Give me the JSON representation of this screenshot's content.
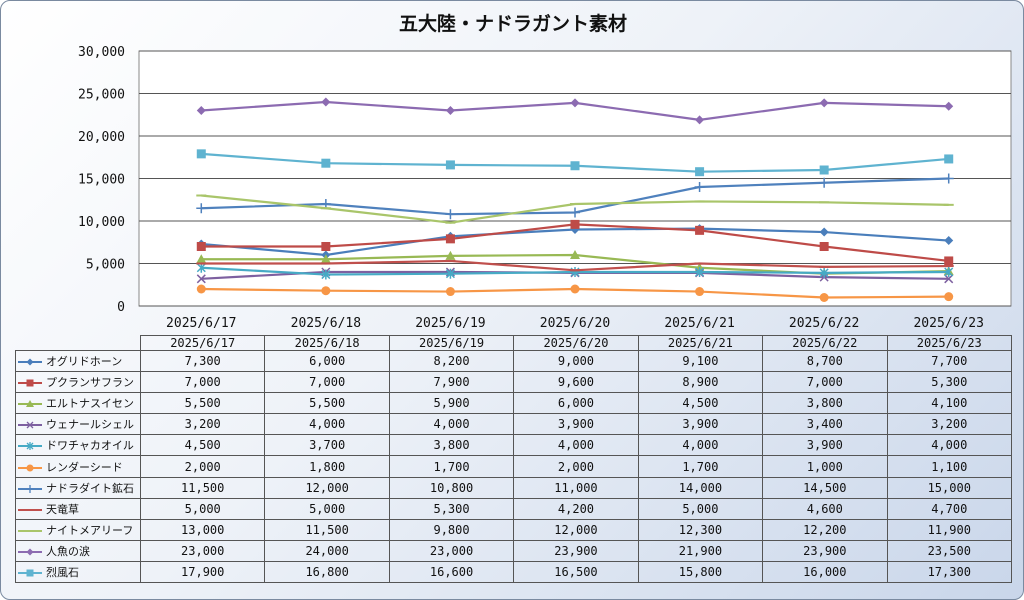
{
  "chart_data": {
    "type": "line",
    "title": "五大陸・ナドラガント素材",
    "categories": [
      "2025/6/17",
      "2025/6/18",
      "2025/6/19",
      "2025/6/20",
      "2025/6/21",
      "2025/6/22",
      "2025/6/23"
    ],
    "ylim": [
      0,
      30000
    ],
    "yticks": [
      "0",
      "5,000",
      "10,000",
      "15,000",
      "20,000",
      "25,000",
      "30,000"
    ],
    "grid": true,
    "legend": "data-table",
    "series": [
      {
        "name": "オグリドホーン",
        "color": "#4a7ebb",
        "marker": "diamond",
        "values": [
          7300,
          6000,
          8200,
          9000,
          9100,
          8700,
          7700
        ],
        "labels": [
          "7,300",
          "6,000",
          "8,200",
          "9,000",
          "9,100",
          "8,700",
          "7,700"
        ]
      },
      {
        "name": "プクランサフラン",
        "color": "#be4b48",
        "marker": "square",
        "values": [
          7000,
          7000,
          7900,
          9600,
          8900,
          7000,
          5300
        ],
        "labels": [
          "7,000",
          "7,000",
          "7,900",
          "9,600",
          "8,900",
          "7,000",
          "5,300"
        ]
      },
      {
        "name": "エルトナスイセン",
        "color": "#98b954",
        "marker": "triangle",
        "values": [
          5500,
          5500,
          5900,
          6000,
          4500,
          3800,
          4100
        ],
        "labels": [
          "5,500",
          "5,500",
          "5,900",
          "6,000",
          "4,500",
          "3,800",
          "4,100"
        ]
      },
      {
        "name": "ウェナールシェル",
        "color": "#7d60a0",
        "marker": "x",
        "values": [
          3200,
          4000,
          4000,
          3900,
          3900,
          3400,
          3200
        ],
        "labels": [
          "3,200",
          "4,000",
          "4,000",
          "3,900",
          "3,900",
          "3,400",
          "3,200"
        ]
      },
      {
        "name": "ドワチャカオイル",
        "color": "#46aac5",
        "marker": "star",
        "values": [
          4500,
          3700,
          3800,
          4000,
          4000,
          3900,
          4000
        ],
        "labels": [
          "4,500",
          "3,700",
          "3,800",
          "4,000",
          "4,000",
          "3,900",
          "4,000"
        ]
      },
      {
        "name": "レンダーシード",
        "color": "#f79646",
        "marker": "circle",
        "values": [
          2000,
          1800,
          1700,
          2000,
          1700,
          1000,
          1100
        ],
        "labels": [
          "2,000",
          "1,800",
          "1,700",
          "2,000",
          "1,700",
          "1,000",
          "1,100"
        ]
      },
      {
        "name": "ナドラダイト鉱石",
        "color": "#4f81bd",
        "marker": "plus",
        "values": [
          11500,
          12000,
          10800,
          11000,
          14000,
          14500,
          15000
        ],
        "labels": [
          "11,500",
          "12,000",
          "10,800",
          "11,000",
          "14,000",
          "14,500",
          "15,000"
        ]
      },
      {
        "name": "天竜草",
        "color": "#c0504d",
        "marker": "dash",
        "values": [
          5000,
          5000,
          5300,
          4200,
          5000,
          4600,
          4700
        ],
        "labels": [
          "5,000",
          "5,000",
          "5,300",
          "4,200",
          "5,000",
          "4,600",
          "4,700"
        ]
      },
      {
        "name": "ナイトメアリーフ",
        "color": "#a9c56a",
        "marker": "dash",
        "values": [
          13000,
          11500,
          9800,
          12000,
          12300,
          12200,
          11900
        ],
        "labels": [
          "13,000",
          "11,500",
          "9,800",
          "12,000",
          "12,300",
          "12,200",
          "11,900"
        ]
      },
      {
        "name": "人魚の涙",
        "color": "#8c6bb1",
        "marker": "diamond",
        "values": [
          23000,
          24000,
          23000,
          23900,
          21900,
          23900,
          23500
        ],
        "labels": [
          "23,000",
          "24,000",
          "23,000",
          "23,900",
          "21,900",
          "23,900",
          "23,500"
        ]
      },
      {
        "name": "烈風石",
        "color": "#5fb3d0",
        "marker": "square",
        "values": [
          17900,
          16800,
          16600,
          16500,
          15800,
          16000,
          17300
        ],
        "labels": [
          "17,900",
          "16,800",
          "16,600",
          "16,500",
          "15,800",
          "16,000",
          "17,300"
        ]
      }
    ]
  }
}
